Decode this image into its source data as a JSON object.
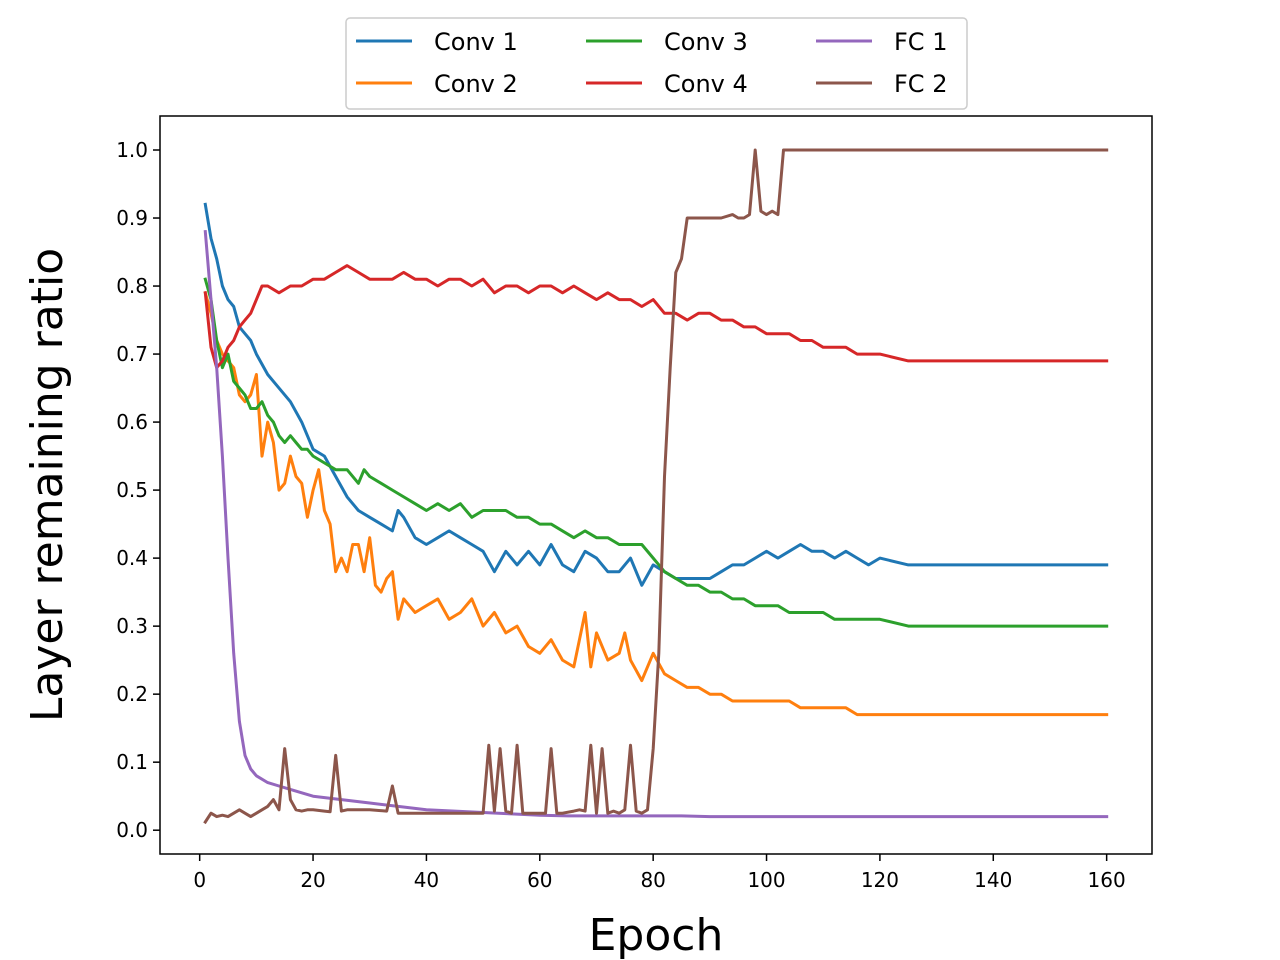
{
  "chart_data": {
    "type": "line",
    "xlabel": "Epoch",
    "ylabel": "Layer remaining ratio",
    "xlim": [
      -7,
      168
    ],
    "ylim": [
      -0.035,
      1.05
    ],
    "xticks": [
      0,
      20,
      40,
      60,
      80,
      100,
      120,
      140,
      160
    ],
    "yticks": [
      0.0,
      0.1,
      0.2,
      0.3,
      0.4,
      0.5,
      0.6,
      0.7,
      0.8,
      0.9,
      1.0
    ],
    "xtick_labels": [
      "0",
      "20",
      "40",
      "60",
      "80",
      "100",
      "120",
      "140",
      "160"
    ],
    "ytick_labels": [
      "0.0",
      "0.1",
      "0.2",
      "0.3",
      "0.4",
      "0.5",
      "0.6",
      "0.7",
      "0.8",
      "0.9",
      "1.0"
    ],
    "legend_position": "top-center",
    "legend_columns": 3,
    "grid": false,
    "series": [
      {
        "name": "Conv 1",
        "color": "#1f77b4",
        "x": [
          1,
          2,
          3,
          4,
          5,
          6,
          7,
          8,
          9,
          10,
          12,
          14,
          16,
          18,
          20,
          22,
          24,
          26,
          28,
          30,
          32,
          34,
          35,
          36,
          38,
          40,
          42,
          44,
          46,
          48,
          50,
          52,
          54,
          56,
          58,
          60,
          62,
          64,
          66,
          68,
          70,
          72,
          74,
          76,
          78,
          80,
          82,
          84,
          86,
          88,
          90,
          92,
          94,
          96,
          98,
          100,
          102,
          104,
          106,
          108,
          110,
          112,
          114,
          116,
          118,
          120,
          125,
          130,
          140,
          150,
          160
        ],
        "y": [
          0.92,
          0.87,
          0.84,
          0.8,
          0.78,
          0.77,
          0.74,
          0.73,
          0.72,
          0.7,
          0.67,
          0.65,
          0.63,
          0.6,
          0.56,
          0.55,
          0.52,
          0.49,
          0.47,
          0.46,
          0.45,
          0.44,
          0.47,
          0.46,
          0.43,
          0.42,
          0.43,
          0.44,
          0.43,
          0.42,
          0.41,
          0.38,
          0.41,
          0.39,
          0.41,
          0.39,
          0.42,
          0.39,
          0.38,
          0.41,
          0.4,
          0.38,
          0.38,
          0.4,
          0.36,
          0.39,
          0.38,
          0.37,
          0.37,
          0.37,
          0.37,
          0.38,
          0.39,
          0.39,
          0.4,
          0.41,
          0.4,
          0.41,
          0.42,
          0.41,
          0.41,
          0.4,
          0.41,
          0.4,
          0.39,
          0.4,
          0.39,
          0.39,
          0.39,
          0.39,
          0.39
        ]
      },
      {
        "name": "Conv 2",
        "color": "#ff7f0e",
        "x": [
          1,
          2,
          3,
          4,
          5,
          6,
          7,
          8,
          9,
          10,
          11,
          12,
          13,
          14,
          15,
          16,
          17,
          18,
          19,
          20,
          21,
          22,
          23,
          24,
          25,
          26,
          27,
          28,
          29,
          30,
          31,
          32,
          33,
          34,
          35,
          36,
          37,
          38,
          40,
          42,
          44,
          46,
          48,
          50,
          52,
          54,
          56,
          58,
          60,
          62,
          64,
          66,
          68,
          69,
          70,
          72,
          74,
          75,
          76,
          78,
          80,
          82,
          84,
          86,
          88,
          90,
          92,
          94,
          96,
          98,
          100,
          102,
          104,
          106,
          108,
          110,
          112,
          114,
          116,
          118,
          120,
          125,
          130,
          140,
          150,
          160
        ],
        "y": [
          0.79,
          0.76,
          0.72,
          0.7,
          0.69,
          0.68,
          0.64,
          0.63,
          0.64,
          0.67,
          0.55,
          0.6,
          0.57,
          0.5,
          0.51,
          0.55,
          0.52,
          0.51,
          0.46,
          0.5,
          0.53,
          0.47,
          0.45,
          0.38,
          0.4,
          0.38,
          0.42,
          0.42,
          0.38,
          0.43,
          0.36,
          0.35,
          0.37,
          0.38,
          0.31,
          0.34,
          0.33,
          0.32,
          0.33,
          0.34,
          0.31,
          0.32,
          0.34,
          0.3,
          0.32,
          0.29,
          0.3,
          0.27,
          0.26,
          0.28,
          0.25,
          0.24,
          0.32,
          0.24,
          0.29,
          0.25,
          0.26,
          0.29,
          0.25,
          0.22,
          0.26,
          0.23,
          0.22,
          0.21,
          0.21,
          0.2,
          0.2,
          0.19,
          0.19,
          0.19,
          0.19,
          0.19,
          0.19,
          0.18,
          0.18,
          0.18,
          0.18,
          0.18,
          0.17,
          0.17,
          0.17,
          0.17,
          0.17,
          0.17,
          0.17,
          0.17
        ]
      },
      {
        "name": "Conv 3",
        "color": "#2ca02c",
        "x": [
          1,
          2,
          3,
          4,
          5,
          6,
          7,
          8,
          9,
          10,
          11,
          12,
          13,
          14,
          15,
          16,
          17,
          18,
          19,
          20,
          22,
          24,
          26,
          28,
          29,
          30,
          32,
          34,
          36,
          38,
          40,
          42,
          44,
          46,
          48,
          50,
          52,
          54,
          56,
          58,
          60,
          62,
          64,
          66,
          68,
          70,
          72,
          74,
          76,
          78,
          80,
          82,
          84,
          86,
          88,
          90,
          92,
          94,
          96,
          98,
          100,
          102,
          104,
          106,
          108,
          110,
          112,
          114,
          116,
          118,
          120,
          125,
          130,
          140,
          150,
          160
        ],
        "y": [
          0.81,
          0.78,
          0.72,
          0.68,
          0.7,
          0.66,
          0.65,
          0.64,
          0.62,
          0.62,
          0.63,
          0.61,
          0.6,
          0.58,
          0.57,
          0.58,
          0.57,
          0.56,
          0.56,
          0.55,
          0.54,
          0.53,
          0.53,
          0.51,
          0.53,
          0.52,
          0.51,
          0.5,
          0.49,
          0.48,
          0.47,
          0.48,
          0.47,
          0.48,
          0.46,
          0.47,
          0.47,
          0.47,
          0.46,
          0.46,
          0.45,
          0.45,
          0.44,
          0.43,
          0.44,
          0.43,
          0.43,
          0.42,
          0.42,
          0.42,
          0.4,
          0.38,
          0.37,
          0.36,
          0.36,
          0.35,
          0.35,
          0.34,
          0.34,
          0.33,
          0.33,
          0.33,
          0.32,
          0.32,
          0.32,
          0.32,
          0.31,
          0.31,
          0.31,
          0.31,
          0.31,
          0.3,
          0.3,
          0.3,
          0.3,
          0.3
        ]
      },
      {
        "name": "Conv 4",
        "color": "#d62728",
        "x": [
          1,
          2,
          3,
          4,
          5,
          6,
          7,
          8,
          9,
          10,
          11,
          12,
          14,
          16,
          18,
          20,
          22,
          24,
          26,
          28,
          30,
          32,
          34,
          36,
          38,
          40,
          42,
          44,
          46,
          48,
          50,
          52,
          54,
          56,
          58,
          60,
          62,
          64,
          66,
          68,
          70,
          72,
          74,
          76,
          78,
          80,
          82,
          84,
          86,
          88,
          90,
          92,
          94,
          96,
          98,
          100,
          102,
          104,
          106,
          108,
          110,
          112,
          114,
          116,
          118,
          120,
          125,
          130,
          140,
          150,
          160
        ],
        "y": [
          0.79,
          0.71,
          0.68,
          0.69,
          0.71,
          0.72,
          0.74,
          0.75,
          0.76,
          0.78,
          0.8,
          0.8,
          0.79,
          0.8,
          0.8,
          0.81,
          0.81,
          0.82,
          0.83,
          0.82,
          0.81,
          0.81,
          0.81,
          0.82,
          0.81,
          0.81,
          0.8,
          0.81,
          0.81,
          0.8,
          0.81,
          0.79,
          0.8,
          0.8,
          0.79,
          0.8,
          0.8,
          0.79,
          0.8,
          0.79,
          0.78,
          0.79,
          0.78,
          0.78,
          0.77,
          0.78,
          0.76,
          0.76,
          0.75,
          0.76,
          0.76,
          0.75,
          0.75,
          0.74,
          0.74,
          0.73,
          0.73,
          0.73,
          0.72,
          0.72,
          0.71,
          0.71,
          0.71,
          0.7,
          0.7,
          0.7,
          0.69,
          0.69,
          0.69,
          0.69,
          0.69
        ]
      },
      {
        "name": "FC 1",
        "color": "#9467bd",
        "x": [
          1,
          2,
          3,
          4,
          5,
          6,
          7,
          8,
          9,
          10,
          12,
          14,
          16,
          18,
          20,
          25,
          30,
          35,
          40,
          45,
          50,
          55,
          60,
          65,
          70,
          75,
          80,
          85,
          90,
          100,
          110,
          120,
          130,
          140,
          150,
          160
        ],
        "y": [
          0.88,
          0.78,
          0.68,
          0.55,
          0.4,
          0.26,
          0.16,
          0.11,
          0.09,
          0.08,
          0.07,
          0.065,
          0.06,
          0.055,
          0.05,
          0.045,
          0.04,
          0.035,
          0.03,
          0.028,
          0.026,
          0.024,
          0.022,
          0.021,
          0.021,
          0.021,
          0.021,
          0.021,
          0.02,
          0.02,
          0.02,
          0.02,
          0.02,
          0.02,
          0.02,
          0.02
        ]
      },
      {
        "name": "FC 2",
        "color": "#8c564b",
        "x": [
          1,
          2,
          3,
          4,
          5,
          6,
          7,
          8,
          9,
          10,
          11,
          12,
          13,
          14,
          15,
          16,
          17,
          18,
          19,
          20,
          22,
          23,
          24,
          25,
          26,
          30,
          33,
          34,
          35,
          40,
          45,
          50,
          51,
          52,
          53,
          54,
          55,
          56,
          57,
          58,
          60,
          61,
          62,
          63,
          64,
          66,
          67,
          68,
          69,
          70,
          71,
          72,
          73,
          74,
          75,
          76,
          77,
          78,
          79,
          80,
          81,
          82,
          83,
          84,
          85,
          86,
          88,
          90,
          92,
          94,
          95,
          96,
          97,
          98,
          99,
          100,
          101,
          102,
          103,
          104,
          110,
          120,
          130,
          140,
          150,
          160
        ],
        "y": [
          0.012,
          0.025,
          0.02,
          0.022,
          0.02,
          0.025,
          0.03,
          0.025,
          0.02,
          0.025,
          0.03,
          0.035,
          0.045,
          0.03,
          0.12,
          0.045,
          0.03,
          0.028,
          0.03,
          0.03,
          0.028,
          0.027,
          0.11,
          0.028,
          0.03,
          0.03,
          0.028,
          0.065,
          0.025,
          0.025,
          0.025,
          0.025,
          0.125,
          0.028,
          0.12,
          0.028,
          0.025,
          0.125,
          0.025,
          0.025,
          0.025,
          0.025,
          0.12,
          0.025,
          0.025,
          0.028,
          0.03,
          0.028,
          0.125,
          0.025,
          0.12,
          0.025,
          0.028,
          0.025,
          0.03,
          0.125,
          0.028,
          0.025,
          0.03,
          0.12,
          0.26,
          0.52,
          0.68,
          0.82,
          0.84,
          0.9,
          0.9,
          0.9,
          0.9,
          0.905,
          0.9,
          0.9,
          0.905,
          1.0,
          0.91,
          0.905,
          0.91,
          0.905,
          1.0,
          1.0,
          1.0,
          1.0,
          1.0,
          1.0,
          1.0,
          1.0
        ]
      }
    ]
  }
}
